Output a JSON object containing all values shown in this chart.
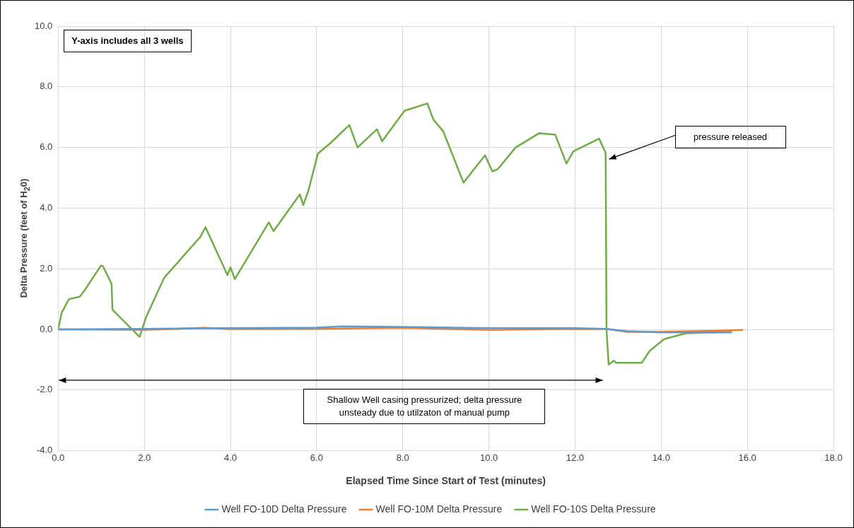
{
  "chart_data": {
    "type": "line",
    "xlabel": "Elapsed Time Since Start of Test (minutes)",
    "ylabel": "Delta Pressure (feet of H$_{2}$0)",
    "xlim": [
      0,
      18
    ],
    "xticks": [
      {
        "value": 0,
        "label": "0.0"
      },
      {
        "value": 2,
        "label": "2.0"
      },
      {
        "value": 4,
        "label": "4.0"
      },
      {
        "value": 6,
        "label": "6.0"
      },
      {
        "value": 8,
        "label": "8.0"
      },
      {
        "value": 10,
        "label": "10.0"
      },
      {
        "value": 12,
        "label": "12.0"
      },
      {
        "value": 14,
        "label": "14.0"
      },
      {
        "value": 16,
        "label": "16.0"
      },
      {
        "value": 18,
        "label": "18.0"
      }
    ],
    "ylim": [
      -4,
      10
    ],
    "yticks": [
      {
        "value": -4,
        "label": "-4.0"
      },
      {
        "value": -2,
        "label": "-2.0"
      },
      {
        "value": 0,
        "label": "0.0"
      },
      {
        "value": 2,
        "label": "2.0"
      },
      {
        "value": 4,
        "label": "4.0"
      },
      {
        "value": 6,
        "label": "6.0"
      },
      {
        "value": 8,
        "label": "8.0"
      },
      {
        "value": 10,
        "label": "10.0"
      }
    ],
    "grid": true,
    "legend": "bottom",
    "marker": "none",
    "line_style": "solid",
    "series": [
      {
        "name": "Well FO-10D Delta Pressure",
        "color": "#5b9bd5",
        "x": [
          0,
          2,
          4,
          6,
          6.6,
          8,
          10,
          12,
          12.7,
          13.2,
          14,
          15,
          15.64
        ],
        "values": [
          0,
          0.02,
          0.04,
          0.06,
          0.1,
          0.08,
          0.04,
          0.04,
          0.02,
          -0.06,
          -0.1,
          -0.1,
          -0.1
        ]
      },
      {
        "name": "Well FO-10M Delta Pressure",
        "color": "#ed7d31",
        "x": [
          0,
          2,
          3.4,
          4,
          6,
          8,
          10,
          12,
          12.75,
          13.2,
          14,
          15,
          15.9
        ],
        "values": [
          0,
          -0.02,
          0.05,
          0.01,
          0.02,
          0.05,
          -0.02,
          0.02,
          0.01,
          -0.08,
          -0.08,
          -0.05,
          -0.02
        ]
      },
      {
        "name": "Well FO-10S Delta Pressure",
        "color": "#70ad47",
        "x": [
          0,
          0.08,
          0.25,
          0.5,
          0.62,
          0.99,
          1.04,
          1.24,
          1.26,
          1.89,
          2.04,
          2.46,
          3.3,
          3.42,
          3.93,
          4.0,
          4.1,
          4.89,
          5.0,
          5.61,
          5.69,
          5.81,
          6.03,
          6.31,
          6.76,
          6.95,
          7.4,
          7.52,
          8.04,
          8.57,
          8.71,
          8.94,
          9.41,
          9.91,
          10.08,
          10.21,
          10.62,
          11.17,
          11.54,
          11.8,
          11.96,
          12.56,
          12.71,
          12.73,
          12.78,
          12.9,
          12.96,
          13.55,
          13.73,
          14.07,
          14.57,
          15.64
        ],
        "values": [
          0,
          0.55,
          1.0,
          1.08,
          1.3,
          2.1,
          2.08,
          1.5,
          0.65,
          -0.25,
          0.4,
          1.7,
          3.05,
          3.37,
          1.79,
          2.05,
          1.66,
          3.53,
          3.24,
          4.45,
          4.1,
          4.58,
          5.8,
          6.13,
          6.74,
          6.0,
          6.6,
          6.2,
          7.21,
          7.45,
          6.92,
          6.53,
          4.84,
          5.74,
          5.21,
          5.29,
          6.0,
          6.47,
          6.42,
          5.47,
          5.87,
          6.29,
          5.82,
          0,
          -1.16,
          -1.03,
          -1.1,
          -1.1,
          -0.71,
          -0.32,
          -0.13,
          -0.08
        ]
      }
    ],
    "annotations": [
      "Y-axis includes all 3 wells",
      "pressure released",
      "Shallow Well casing pressurized; delta pressure unsteady due to utilzaton of manual pump"
    ]
  }
}
